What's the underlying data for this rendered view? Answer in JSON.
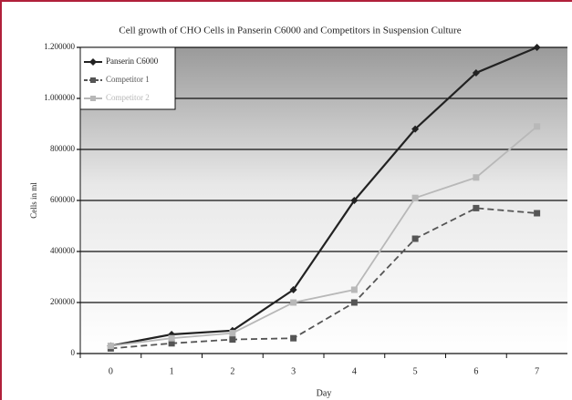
{
  "chart_data": {
    "type": "line",
    "title": "Cell growth of CHO Cells in Panserin C6000 and Competitors in Suspension Culture",
    "x_label": "Day",
    "y_label": "Cells in ml",
    "categories": [
      "0",
      "1",
      "2",
      "3",
      "4",
      "5",
      "6",
      "7"
    ],
    "series": [
      {
        "name": "Panserin C6000",
        "color": "#222222",
        "dashed": false,
        "marker": "diamond",
        "values": [
          30000,
          75000,
          90000,
          250000,
          600000,
          880000,
          1100000,
          1200000
        ]
      },
      {
        "name": "Competitor 1",
        "color": "#555555",
        "dashed": true,
        "marker": "square",
        "values": [
          20000,
          40000,
          55000,
          60000,
          200000,
          450000,
          570000,
          550000
        ]
      },
      {
        "name": "Competitor 2",
        "color": "#b8b8b8",
        "dashed": false,
        "marker": "square",
        "values": [
          30000,
          60000,
          80000,
          200000,
          250000,
          610000,
          690000,
          890000
        ]
      }
    ],
    "ylim": [
      0,
      1200000
    ],
    "yticks": [
      0,
      200000,
      400000,
      600000,
      800000,
      {
        "value": 1000000,
        "label": "1.000000"
      },
      {
        "value": 1200000,
        "label": "1.200000"
      }
    ],
    "grid": true,
    "legend": "top-left"
  }
}
